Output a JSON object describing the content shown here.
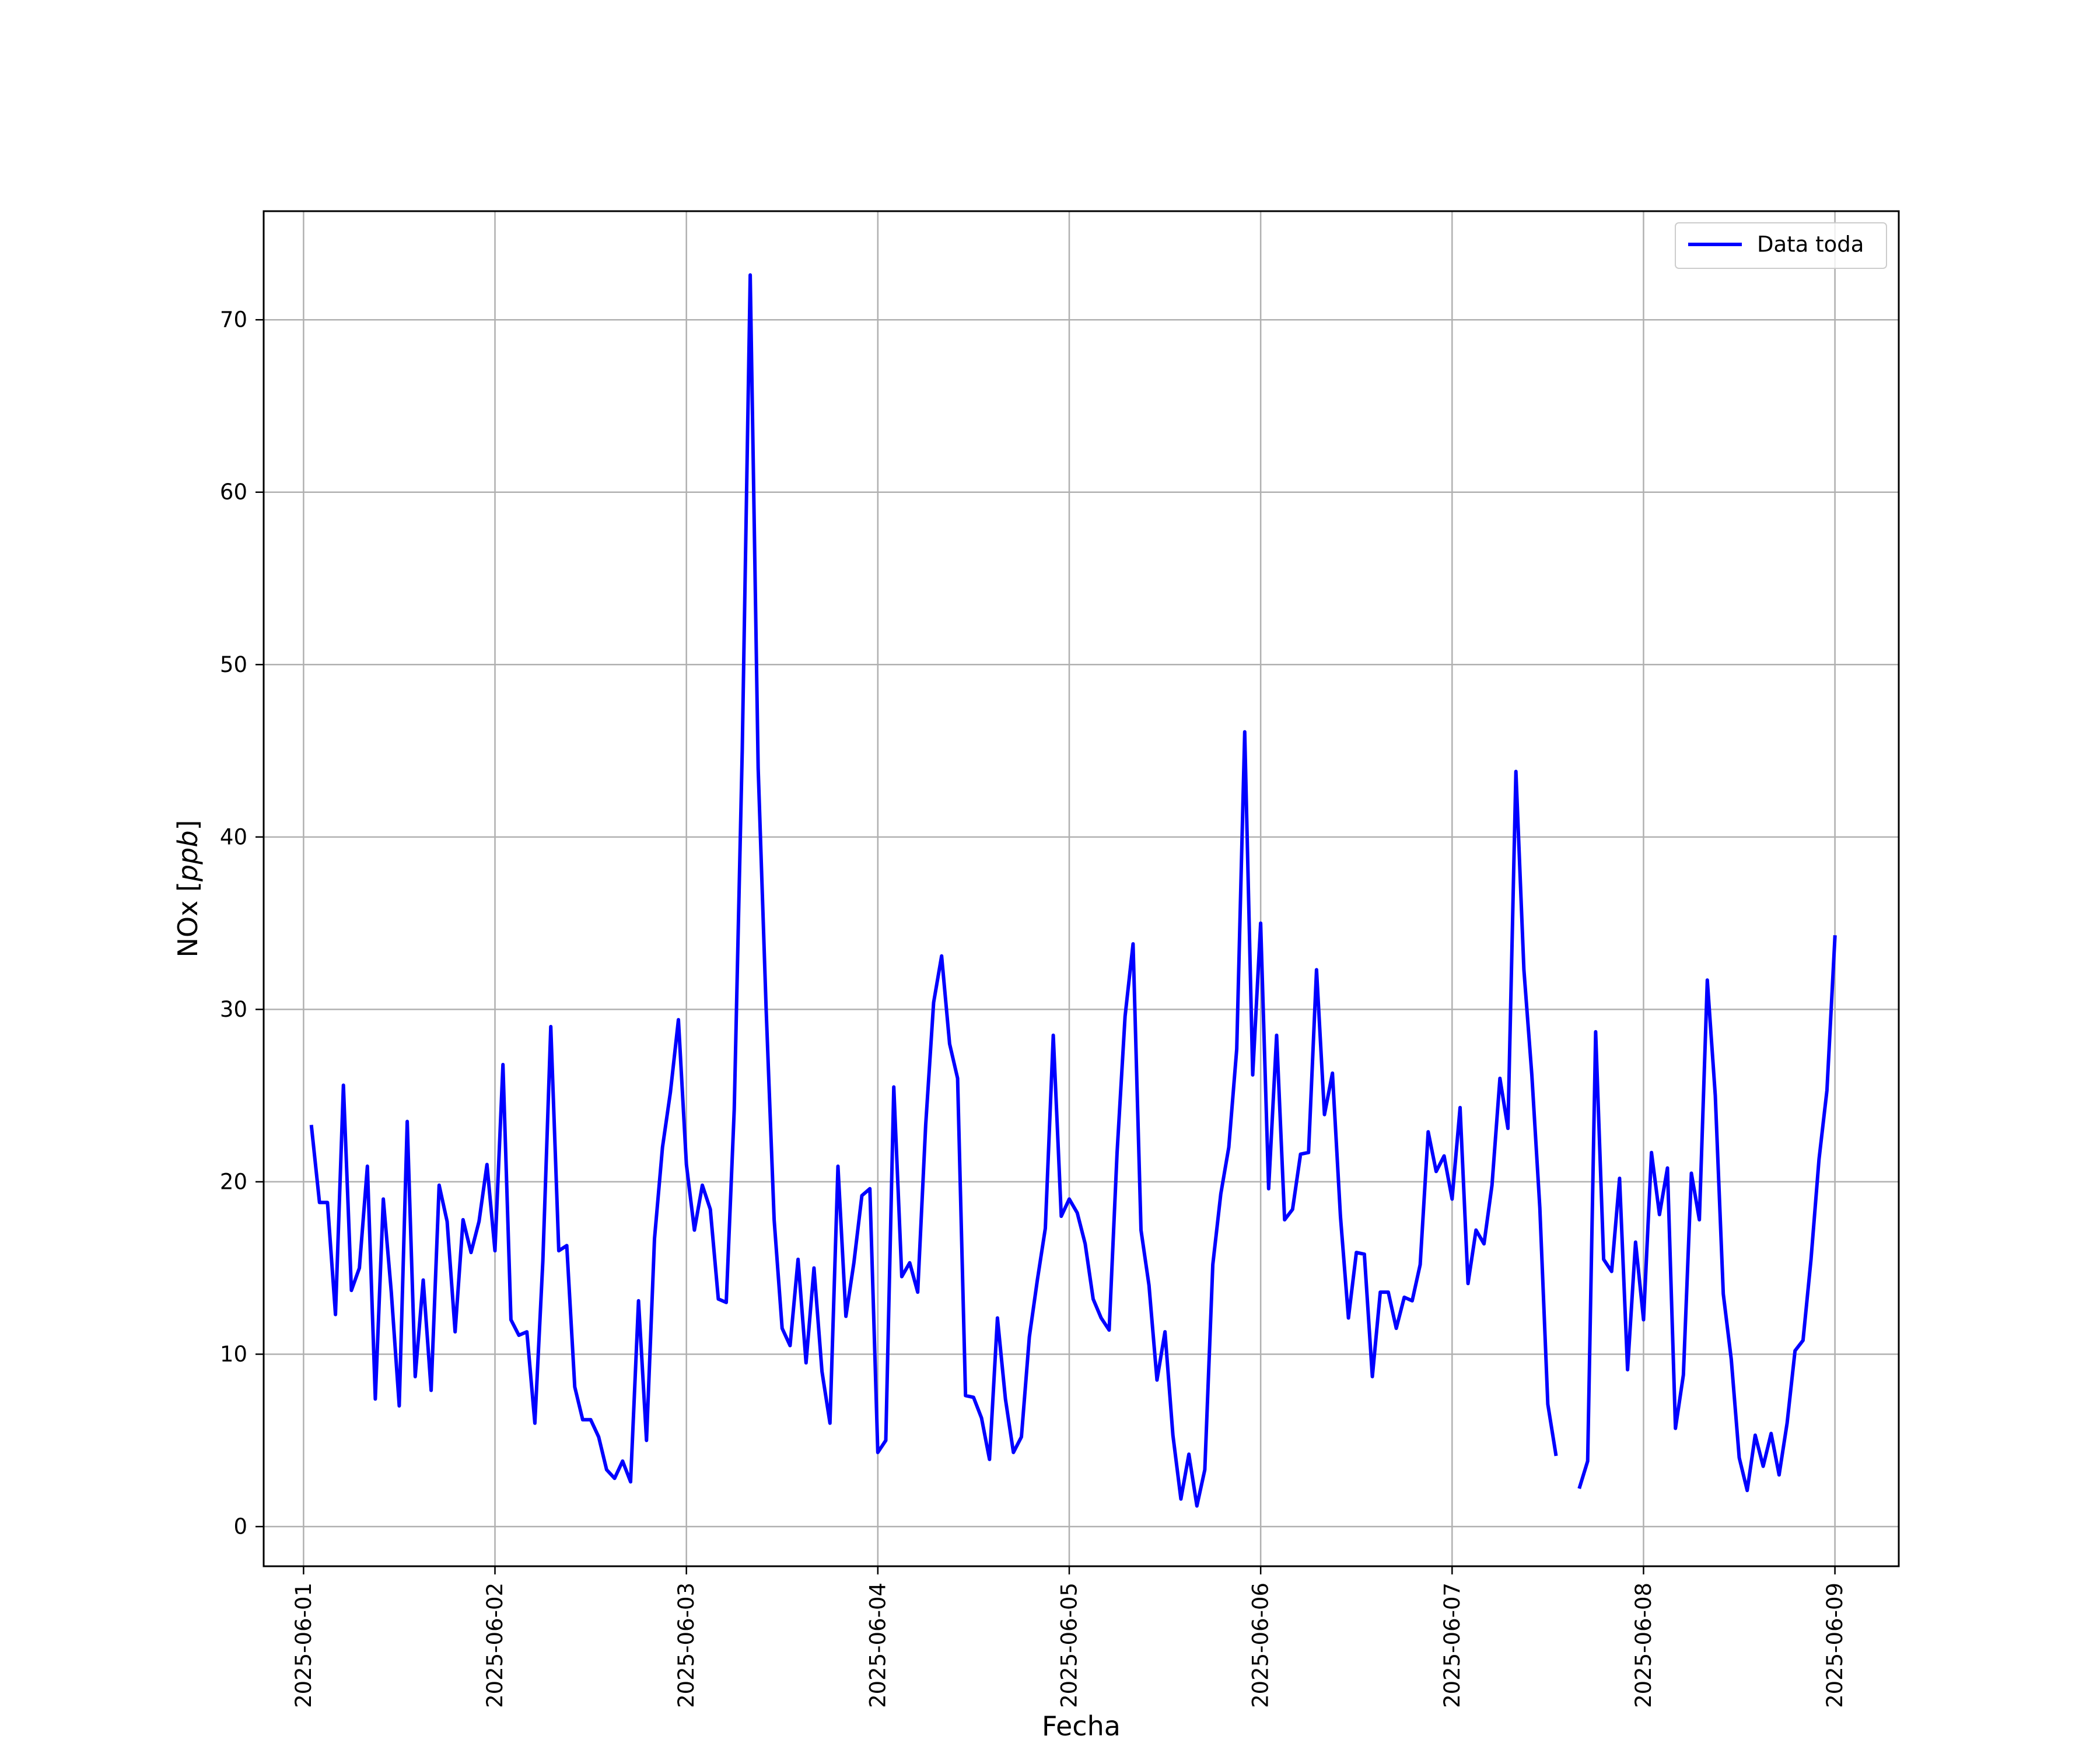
{
  "chart_data": {
    "type": "line",
    "title": "",
    "xlabel": "Fecha",
    "ylabel_text": "NOx [",
    "ylabel_unit": "ppb",
    "ylabel_close": "]",
    "x_start": "2025-06-01 01:00",
    "x_step_hours": 1,
    "xlim": [
      "2025-05-31 19:00",
      "2025-06-09 08:00"
    ],
    "ylim": [
      -2.3,
      76.3
    ],
    "x_ticks": [
      "2025-06-01",
      "2025-06-02",
      "2025-06-03",
      "2025-06-04",
      "2025-06-05",
      "2025-06-06",
      "2025-06-07",
      "2025-06-08",
      "2025-06-09"
    ],
    "y_ticks": [
      "0",
      "10",
      "20",
      "30",
      "40",
      "50",
      "60",
      "70"
    ],
    "y_tick_values": [
      0,
      10,
      20,
      30,
      40,
      50,
      60,
      70
    ],
    "grid": true,
    "legend_position": "top-right",
    "series": [
      {
        "name": "Data toda",
        "color": "#0000ff",
        "values": [
          23.2,
          18.8,
          18.8,
          12.3,
          25.6,
          13.7,
          15.0,
          20.9,
          7.4,
          19.0,
          13.6,
          7.0,
          23.5,
          8.7,
          14.3,
          7.9,
          19.8,
          17.7,
          11.3,
          17.8,
          15.9,
          17.7,
          21.0,
          16.0,
          26.8,
          12.0,
          11.1,
          11.3,
          6.0,
          15.4,
          29.0,
          16.0,
          16.3,
          8.1,
          6.2,
          6.2,
          5.2,
          3.3,
          2.8,
          3.8,
          2.6,
          13.1,
          5.0,
          16.7,
          22.0,
          25.2,
          29.4,
          21.0,
          17.2,
          19.8,
          18.4,
          13.2,
          13.0,
          24.2,
          45.0,
          72.6,
          44.0,
          30.0,
          17.8,
          11.5,
          10.5,
          15.5,
          9.5,
          15.0,
          9.0,
          6.0,
          20.9,
          12.2,
          15.3,
          19.2,
          19.6,
          4.3,
          5.0,
          25.5,
          14.5,
          15.3,
          13.6,
          23.3,
          30.4,
          33.1,
          28.0,
          26.0,
          7.6,
          7.5,
          6.3,
          3.9,
          12.1,
          7.4,
          4.3,
          5.2,
          11.0,
          14.3,
          17.3,
          28.5,
          18.0,
          19.0,
          18.2,
          16.4,
          13.2,
          12.1,
          11.4,
          21.7,
          29.6,
          33.8,
          17.2,
          14.0,
          8.5,
          11.3,
          5.3,
          1.6,
          4.2,
          1.2,
          3.3,
          15.2,
          19.3,
          22.0,
          27.7,
          46.1,
          26.2,
          35.0,
          19.6,
          28.5,
          17.8,
          18.4,
          21.6,
          21.7,
          32.3,
          23.9,
          26.3,
          18.0,
          12.1,
          15.9,
          15.8,
          8.7,
          13.6,
          13.6,
          11.5,
          13.3,
          13.1,
          15.2,
          22.9,
          20.6,
          21.5,
          19.0,
          24.3,
          14.1,
          17.2,
          16.4,
          19.8,
          26.0,
          23.1,
          43.8,
          32.3,
          26.2,
          18.5,
          7.1,
          4.2,
          null,
          null,
          2.3,
          3.8,
          28.7,
          15.5,
          14.8,
          20.2,
          9.1,
          16.5,
          12.0,
          21.7,
          18.1,
          20.8,
          5.7,
          8.8,
          20.5,
          17.8,
          31.7,
          25.0,
          13.5,
          9.7,
          4.0,
          2.1,
          5.3,
          3.5,
          5.4,
          3.0,
          6.0,
          10.2,
          10.8,
          15.5,
          21.3,
          25.3,
          34.2
        ]
      }
    ]
  }
}
